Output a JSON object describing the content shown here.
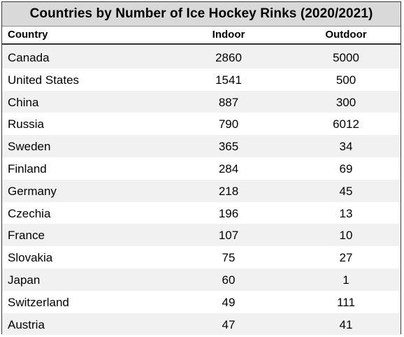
{
  "chart_data": {
    "type": "table",
    "title": "Countries by Number of Ice Hockey Rinks (2020/2021)",
    "columns": [
      "Country",
      "Indoor",
      "Outdoor"
    ],
    "rows": [
      {
        "country": "Canada",
        "indoor": 2860,
        "outdoor": 5000
      },
      {
        "country": "United States",
        "indoor": 1541,
        "outdoor": 500
      },
      {
        "country": "China",
        "indoor": 887,
        "outdoor": 300
      },
      {
        "country": "Russia",
        "indoor": 790,
        "outdoor": 6012
      },
      {
        "country": "Sweden",
        "indoor": 365,
        "outdoor": 34
      },
      {
        "country": "Finland",
        "indoor": 284,
        "outdoor": 69
      },
      {
        "country": "Germany",
        "indoor": 218,
        "outdoor": 45
      },
      {
        "country": "Czechia",
        "indoor": 196,
        "outdoor": 13
      },
      {
        "country": "France",
        "indoor": 107,
        "outdoor": 10
      },
      {
        "country": "Slovakia",
        "indoor": 75,
        "outdoor": 27
      },
      {
        "country": "Japan",
        "indoor": 60,
        "outdoor": 1
      },
      {
        "country": "Switzerland",
        "indoor": 49,
        "outdoor": 111
      },
      {
        "country": "Austria",
        "indoor": 47,
        "outdoor": 41
      }
    ]
  },
  "colors": {
    "title_background": "#d9d9d9",
    "row_shade": "#f1f1f1",
    "border": "#3a3a3a"
  }
}
